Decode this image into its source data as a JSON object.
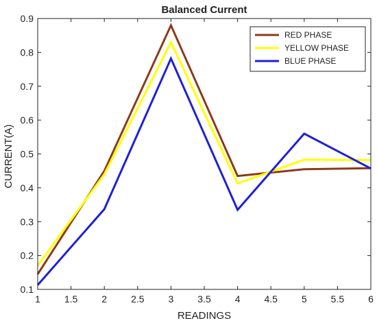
{
  "chart_data": {
    "type": "line",
    "title": "Balanced Current",
    "xlabel": "READINGS",
    "ylabel": "CURRENT(A)",
    "xlim": [
      1,
      6
    ],
    "ylim": [
      0.1,
      0.9
    ],
    "xticks": [
      "1",
      "1.5",
      "2",
      "2.5",
      "3",
      "3.5",
      "4",
      "4.5",
      "5",
      "5.5",
      "6"
    ],
    "yticks": [
      "0.1",
      "0.2",
      "0.3",
      "0.4",
      "0.5",
      "0.6",
      "0.7",
      "0.8",
      "0.9"
    ],
    "grid": false,
    "legend_position": "top-right",
    "x": [
      1,
      2,
      3,
      4,
      5,
      6
    ],
    "series": [
      {
        "name": "RED PHASE",
        "color": "#8B3A1A",
        "values": [
          0.145,
          0.45,
          0.88,
          0.435,
          0.455,
          0.458
        ]
      },
      {
        "name": "YELLOW PHASE",
        "color": "#FFFF00",
        "values": [
          0.17,
          0.44,
          0.83,
          0.413,
          0.483,
          0.482
        ]
      },
      {
        "name": "BLUE PHASE",
        "color": "#1F1FD6",
        "values": [
          0.113,
          0.337,
          0.782,
          0.335,
          0.56,
          0.457
        ]
      }
    ]
  }
}
